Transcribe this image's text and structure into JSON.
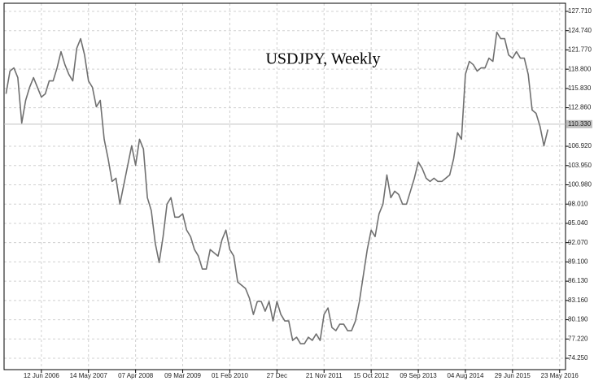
{
  "chart_data": {
    "type": "line",
    "title": "USDJPY, Weekly",
    "categories": [
      null,
      null,
      null,
      null,
      null,
      null,
      null,
      null,
      null,
      "12 Jun 2006",
      null,
      null,
      null,
      null,
      null,
      null,
      null,
      null,
      null,
      null,
      null,
      "14 May 2007",
      null,
      null,
      null,
      null,
      null,
      null,
      null,
      null,
      null,
      null,
      null,
      "07 Apr 2008",
      null,
      null,
      null,
      null,
      null,
      null,
      null,
      null,
      null,
      null,
      null,
      "09 Mar 2009",
      null,
      null,
      null,
      null,
      null,
      null,
      null,
      null,
      null,
      null,
      null,
      "01 Feb 2010",
      null,
      null,
      null,
      null,
      null,
      null,
      null,
      null,
      null,
      null,
      null,
      "27 Dec",
      null,
      null,
      null,
      null,
      null,
      null,
      null,
      null,
      null,
      null,
      null,
      "21 Nov 2011",
      null,
      null,
      null,
      null,
      null,
      null,
      null,
      null,
      null,
      null,
      null,
      "15 Oct 2012",
      null,
      null,
      null,
      null,
      null,
      null,
      null,
      null,
      null,
      null,
      null,
      "09 Sep 2013",
      null,
      null,
      null,
      null,
      null,
      null,
      null,
      null,
      null,
      null,
      null,
      "04 Aug 2014",
      null,
      null,
      null,
      null,
      null,
      null,
      null,
      null,
      null,
      null,
      null,
      "29 Jun 2015",
      null,
      null,
      null,
      null,
      null,
      null,
      null,
      null,
      null,
      null,
      null,
      "23 May 2016",
      null
    ],
    "series": [
      {
        "color": "#707070",
        "values": [
          115,
          118.5,
          119,
          117.5,
          110.5,
          114,
          116,
          117.5,
          116,
          114.5,
          115,
          117,
          117,
          119,
          121.5,
          119.5,
          118,
          117,
          122,
          123.5,
          121,
          117,
          116,
          113,
          114,
          108,
          105,
          101.5,
          102,
          98,
          101,
          104,
          107,
          104,
          108,
          106.5,
          99,
          97,
          92,
          89,
          93,
          98,
          99,
          96,
          96,
          96.5,
          94,
          93,
          91,
          90,
          88,
          88,
          91,
          90.5,
          90,
          92.5,
          94,
          91,
          90,
          86,
          85.5,
          85,
          83.5,
          81,
          83,
          83,
          81.5,
          83,
          80,
          83,
          81,
          80,
          80,
          77,
          77.5,
          76.5,
          76.5,
          77.5,
          77,
          78,
          77,
          81,
          82,
          79,
          78.5,
          79.5,
          79.5,
          78.5,
          78.5,
          80,
          83,
          87,
          91,
          94,
          93,
          96.5,
          98,
          102.5,
          99,
          100,
          99.5,
          98,
          98,
          100,
          102,
          104.5,
          103.5,
          102,
          101.5,
          102,
          101.5,
          101.5,
          102,
          102.5,
          105,
          109,
          108,
          118,
          120,
          119.5,
          118.5,
          119,
          119,
          120.5,
          120,
          124.5,
          123.5,
          123.5,
          121,
          120.5,
          121.5,
          120.5,
          120.5,
          118,
          112.5,
          112,
          110,
          107,
          109.5,
          null,
          null,
          null,
          null
        ]
      }
    ],
    "ylim": [
      72.5,
      128.96
    ],
    "yticks": [
      {
        "value": 127.71,
        "label": "127.710"
      },
      {
        "value": 124.74,
        "label": "124.740"
      },
      {
        "value": 121.77,
        "label": "121.770"
      },
      {
        "value": 118.8,
        "label": "118.800"
      },
      {
        "value": 115.83,
        "label": "115.830"
      },
      {
        "value": 112.86,
        "label": "112.860"
      },
      {
        "value": 106.92,
        "label": "106.920"
      },
      {
        "value": 103.95,
        "label": "103.950"
      },
      {
        "value": 100.98,
        "label": "100.980"
      },
      {
        "value": 98.01,
        "label": "98.010"
      },
      {
        "value": 95.04,
        "label": "95.040"
      },
      {
        "value": 92.07,
        "label": "92.070"
      },
      {
        "value": 89.1,
        "label": "89.100"
      },
      {
        "value": 86.13,
        "label": "86.130"
      },
      {
        "value": 83.16,
        "label": "83.160"
      },
      {
        "value": 80.19,
        "label": "80.190"
      },
      {
        "value": 77.22,
        "label": "77.220"
      },
      {
        "value": 74.25,
        "label": "74.250"
      }
    ],
    "last_price": {
      "value": 110.33,
      "label": "110.330"
    },
    "grid": true
  }
}
